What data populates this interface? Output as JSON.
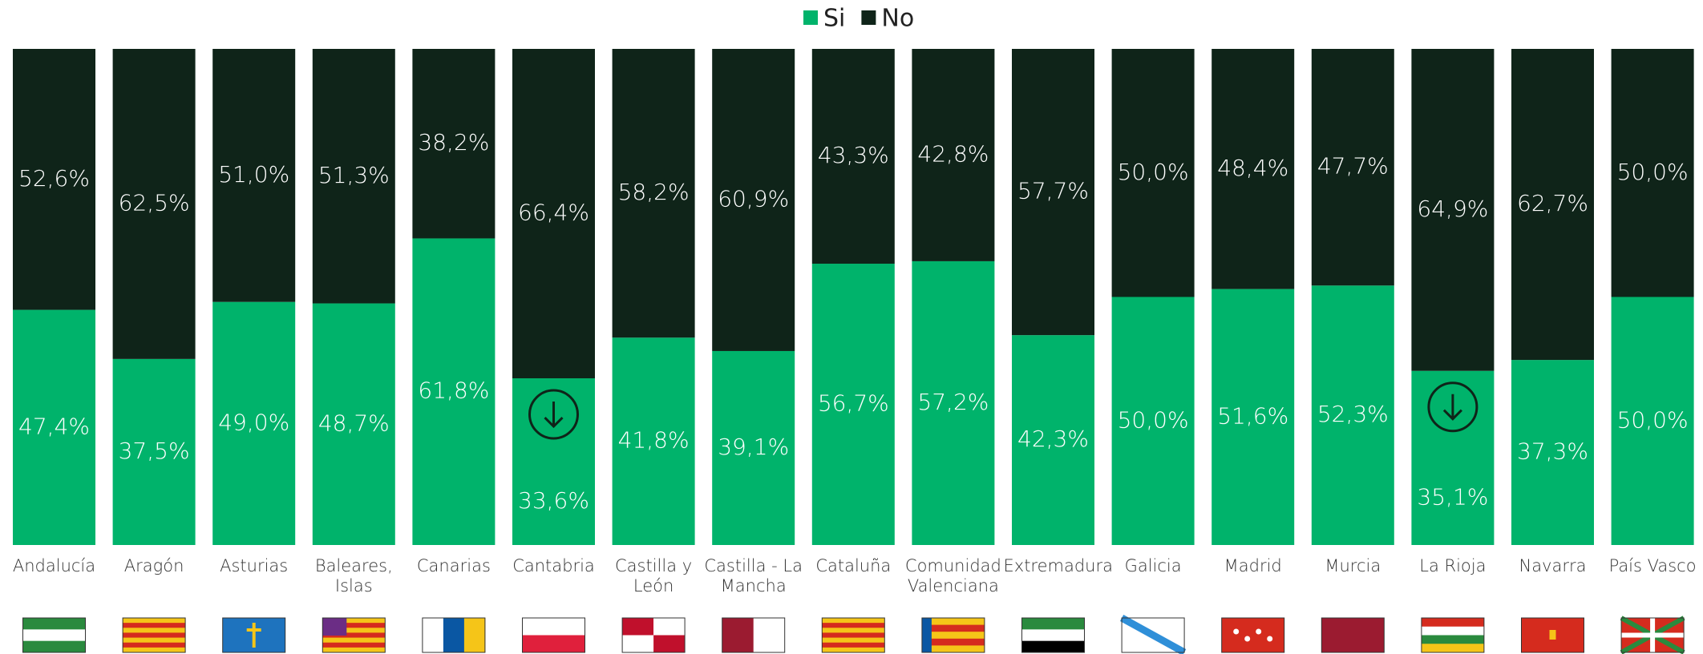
{
  "chart_data": {
    "type": "stacked-bar",
    "categories": [
      "Andalucía",
      "Aragón",
      "Asturias",
      "Baleares, Islas",
      "Canarias",
      "Cantabria",
      "Castilla y León",
      "Castilla - La Mancha",
      "Cataluña",
      "Comunidad Valenciana",
      "Extremadura",
      "Galicia",
      "Madrid",
      "Murcia",
      "La Rioja",
      "Navarra",
      "País Vasco"
    ],
    "ylim": [
      0,
      100
    ],
    "legend": "top",
    "series": [
      {
        "name": "Si",
        "color": "#00b36b",
        "values": [
          47.4,
          37.5,
          49.0,
          48.7,
          61.8,
          33.6,
          41.8,
          39.1,
          56.7,
          57.2,
          42.3,
          50.0,
          51.6,
          52.3,
          35.1,
          37.3,
          50.0
        ],
        "value_labels": [
          "47,4%",
          "37,5%",
          "49,0%",
          "48,7%",
          "61,8%",
          "33,6%",
          "41,8%",
          "39,1%",
          "56,7%",
          "57,2%",
          "42,3%",
          "50,0%",
          "51,6%",
          "52,3%",
          "35,1%",
          "37,3%",
          "50,0%"
        ]
      },
      {
        "name": "No",
        "color": "#0f2419",
        "values": [
          52.6,
          62.5,
          51.0,
          51.3,
          38.2,
          66.4,
          58.2,
          60.9,
          43.3,
          42.8,
          57.7,
          50.0,
          48.4,
          47.7,
          64.9,
          62.7,
          50.0
        ],
        "value_labels": [
          "52,6%",
          "62,5%",
          "51,0%",
          "51,3%",
          "38,2%",
          "66,4%",
          "58,2%",
          "60,9%",
          "43,3%",
          "42,8%",
          "57,7%",
          "50,0%",
          "48,4%",
          "47,7%",
          "64,9%",
          "62,7%",
          "50,0%"
        ]
      }
    ]
  }
}
